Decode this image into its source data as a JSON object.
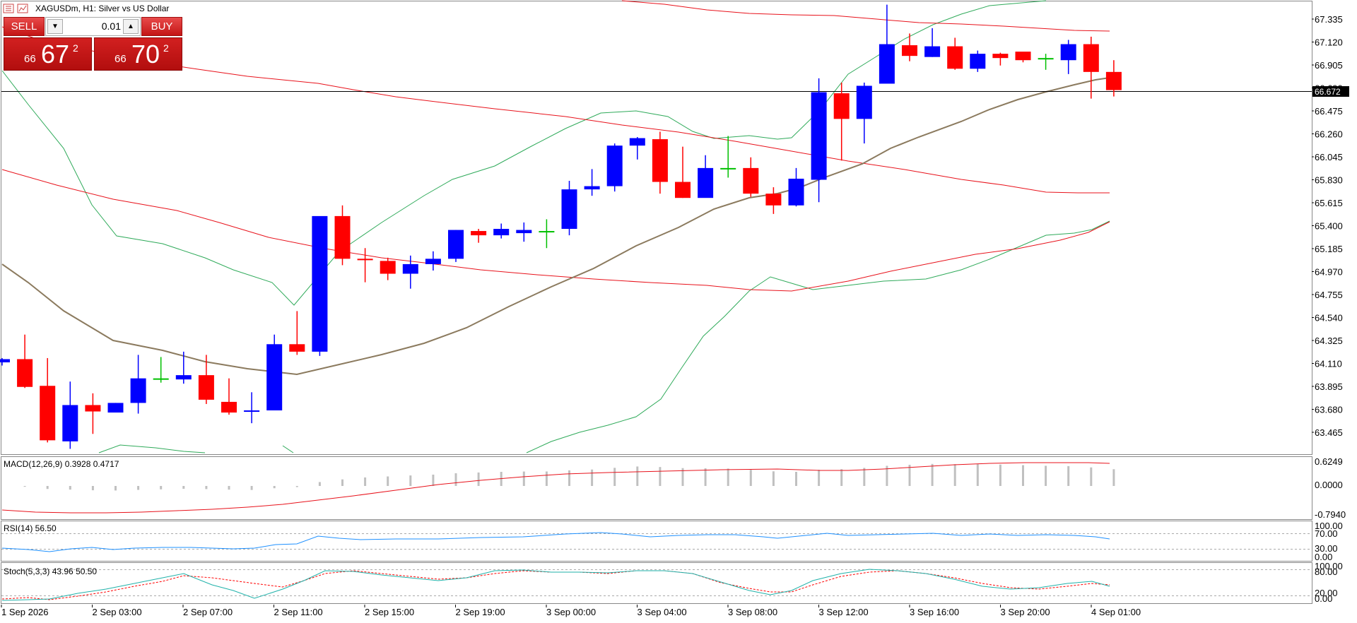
{
  "window": {
    "title": "XAGUSDm, H1:  Silver vs US Dollar"
  },
  "trade_panel": {
    "sell_label": "SELL",
    "buy_label": "BUY",
    "lot": "0.01",
    "sell_price": {
      "prefix": "66",
      "big": "67",
      "sup": "2"
    },
    "buy_price": {
      "prefix": "66",
      "big": "70",
      "sup": "2"
    },
    "icons": [
      "chart-list-icon",
      "one-click-trading-icon",
      "lot-down-arrow-icon",
      "lot-up-arrow-icon"
    ]
  },
  "price_axis": {
    "labels": [
      "67.335",
      "67.120",
      "66.905",
      "66.690",
      "66.475",
      "66.260",
      "66.045",
      "65.830",
      "65.615",
      "65.400",
      "65.185",
      "64.970",
      "64.755",
      "64.540",
      "64.325",
      "64.110",
      "63.895",
      "63.680",
      "63.465"
    ],
    "current_price": "66.672"
  },
  "time_axis": {
    "labels": [
      "1 Sep 2026",
      "2 Sep 03:00",
      "2 Sep 07:00",
      "2 Sep 11:00",
      "2 Sep 15:00",
      "2 Sep 19:00",
      "3 Sep 00:00",
      "3 Sep 04:00",
      "3 Sep 08:00",
      "3 Sep 12:00",
      "3 Sep 16:00",
      "3 Sep 20:00",
      "4 Sep 01:00"
    ]
  },
  "indicators": {
    "macd": {
      "label": "MACD(12,26,9) 0.3928 0.4717",
      "scale": [
        "0.6249",
        "0.0000",
        "-0.7940"
      ]
    },
    "rsi": {
      "label": "RSI(14) 56.50",
      "scale": [
        "100.00",
        "70.00",
        "30.00",
        "0.00"
      ]
    },
    "stoch": {
      "label": "Stoch(5,3,3) 43.96 50.50",
      "scale": [
        "100.00",
        "80.00",
        "20.00",
        "0.00"
      ]
    }
  },
  "colors": {
    "bull": "#0000ff",
    "bear": "#ff0000",
    "doji": "#00c000",
    "ma_red": "#e8121b",
    "ma_brown": "#8b7a5e",
    "bollinger": "#2faa5a",
    "rsi": "#1e90ff",
    "stoch_main": "#20b2aa",
    "stoch_signal": "#ff0000",
    "macd_hist": "#c0c0c0"
  },
  "chart_data": {
    "type": "candlestick",
    "symbol": "XAGUSDm",
    "timeframe": "H1",
    "ylim": [
      63.31,
      67.48
    ],
    "candles": [
      {
        "o": 64.12,
        "h": 64.16,
        "l": 64.09,
        "c": 64.15
      },
      {
        "o": 64.15,
        "h": 64.38,
        "l": 63.88,
        "c": 63.89
      },
      {
        "o": 63.9,
        "h": 64.16,
        "l": 63.37,
        "c": 63.39
      },
      {
        "o": 63.38,
        "h": 63.94,
        "l": 63.31,
        "c": 63.72
      },
      {
        "o": 63.72,
        "h": 63.83,
        "l": 63.45,
        "c": 63.66
      },
      {
        "o": 63.65,
        "h": 63.74,
        "l": 63.67,
        "c": 63.74
      },
      {
        "o": 63.74,
        "h": 64.19,
        "l": 63.64,
        "c": 63.97
      },
      {
        "o": 63.97,
        "h": 64.17,
        "l": 63.93,
        "c": 63.97
      },
      {
        "o": 63.96,
        "h": 64.22,
        "l": 63.92,
        "c": 64.0
      },
      {
        "o": 64.0,
        "h": 64.19,
        "l": 63.73,
        "c": 63.77
      },
      {
        "o": 63.75,
        "h": 63.97,
        "l": 63.63,
        "c": 63.65
      },
      {
        "o": 63.66,
        "h": 63.84,
        "l": 63.55,
        "c": 63.67
      },
      {
        "o": 63.67,
        "h": 64.38,
        "l": 63.68,
        "c": 64.29
      },
      {
        "o": 64.29,
        "h": 64.6,
        "l": 64.19,
        "c": 64.22
      },
      {
        "o": 64.22,
        "h": 65.47,
        "l": 64.18,
        "c": 65.49
      },
      {
        "o": 65.49,
        "h": 65.59,
        "l": 65.03,
        "c": 65.09
      },
      {
        "o": 65.09,
        "h": 65.19,
        "l": 64.87,
        "c": 65.08
      },
      {
        "o": 65.07,
        "h": 65.1,
        "l": 64.89,
        "c": 64.95
      },
      {
        "o": 64.95,
        "h": 65.12,
        "l": 64.81,
        "c": 65.04
      },
      {
        "o": 65.04,
        "h": 65.16,
        "l": 64.98,
        "c": 65.09
      },
      {
        "o": 65.09,
        "h": 65.36,
        "l": 65.06,
        "c": 65.36
      },
      {
        "o": 65.35,
        "h": 65.37,
        "l": 65.24,
        "c": 65.31
      },
      {
        "o": 65.31,
        "h": 65.42,
        "l": 65.28,
        "c": 65.37
      },
      {
        "o": 65.33,
        "h": 65.43,
        "l": 65.25,
        "c": 65.36
      },
      {
        "o": 65.35,
        "h": 65.46,
        "l": 65.19,
        "c": 65.35
      },
      {
        "o": 65.37,
        "h": 65.82,
        "l": 65.31,
        "c": 65.74
      },
      {
        "o": 65.74,
        "h": 65.93,
        "l": 65.68,
        "c": 65.77
      },
      {
        "o": 65.77,
        "h": 66.17,
        "l": 65.72,
        "c": 66.15
      },
      {
        "o": 66.15,
        "h": 66.23,
        "l": 66.02,
        "c": 66.22
      },
      {
        "o": 66.21,
        "h": 66.28,
        "l": 65.7,
        "c": 65.81
      },
      {
        "o": 65.81,
        "h": 66.14,
        "l": 65.66,
        "c": 65.66
      },
      {
        "o": 65.66,
        "h": 66.06,
        "l": 65.68,
        "c": 65.94
      },
      {
        "o": 65.94,
        "h": 66.24,
        "l": 65.85,
        "c": 65.94
      },
      {
        "o": 65.94,
        "h": 66.04,
        "l": 65.67,
        "c": 65.7
      },
      {
        "o": 65.7,
        "h": 65.76,
        "l": 65.51,
        "c": 65.59
      },
      {
        "o": 65.59,
        "h": 65.94,
        "l": 65.58,
        "c": 65.84
      },
      {
        "o": 65.83,
        "h": 66.78,
        "l": 65.62,
        "c": 66.65
      },
      {
        "o": 66.64,
        "h": 66.74,
        "l": 66.01,
        "c": 66.4
      },
      {
        "o": 66.4,
        "h": 66.74,
        "l": 66.17,
        "c": 66.71
      },
      {
        "o": 66.73,
        "h": 67.47,
        "l": 66.76,
        "c": 67.1
      },
      {
        "o": 67.09,
        "h": 67.2,
        "l": 66.94,
        "c": 66.99
      },
      {
        "o": 66.98,
        "h": 67.25,
        "l": 66.98,
        "c": 67.08
      },
      {
        "o": 67.08,
        "h": 67.16,
        "l": 66.86,
        "c": 66.87
      },
      {
        "o": 66.87,
        "h": 67.04,
        "l": 66.84,
        "c": 67.01
      },
      {
        "o": 67.01,
        "h": 67.02,
        "l": 66.9,
        "c": 66.97
      },
      {
        "o": 67.03,
        "h": 67.02,
        "l": 66.93,
        "c": 66.95
      },
      {
        "o": 66.97,
        "h": 67.01,
        "l": 66.86,
        "c": 66.97
      },
      {
        "o": 66.95,
        "h": 67.14,
        "l": 66.82,
        "c": 67.1
      },
      {
        "o": 67.1,
        "h": 67.17,
        "l": 66.59,
        "c": 66.84
      },
      {
        "o": 66.84,
        "h": 66.95,
        "l": 66.61,
        "c": 66.67
      }
    ]
  }
}
